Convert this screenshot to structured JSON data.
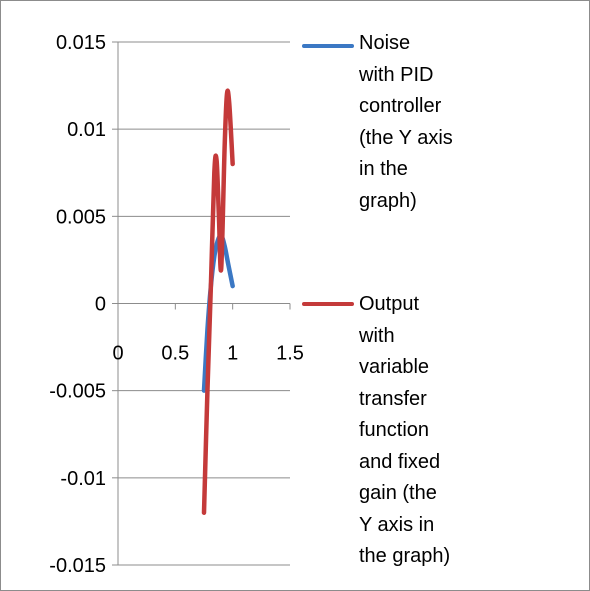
{
  "chart_data": {
    "type": "line",
    "xlim": [
      0,
      1.5
    ],
    "ylim": [
      -0.015,
      0.015
    ],
    "x_ticks": [
      "0",
      "0.5",
      "1",
      "1.5"
    ],
    "y_ticks": [
      "0.015",
      "0.01",
      "0.005",
      "0",
      "-0.005",
      "-0.01",
      "-0.015"
    ],
    "grid": true,
    "legend_position": "right",
    "series": [
      {
        "name_lines": [
          "Noise",
          "with PID",
          "controller",
          "(the Y axis",
          "in the",
          "graph)"
        ],
        "color": "#3b78c4",
        "x": [
          0.75,
          0.78,
          0.81,
          0.84,
          0.87,
          0.9,
          0.93,
          0.96,
          1.0
        ],
        "y": [
          -0.005,
          -0.0015,
          0.001,
          0.0027,
          0.0036,
          0.0039,
          0.0033,
          0.0023,
          0.001
        ]
      },
      {
        "name_lines": [
          "Output",
          "with",
          "variable",
          "transfer",
          "function",
          "and fixed",
          "gain (the",
          "Y axis in",
          "the graph)"
        ],
        "color": "#c43a3a",
        "x": [
          0.75,
          0.78,
          0.81,
          0.84,
          0.86,
          0.88,
          0.9,
          0.93,
          0.95,
          0.97,
          1.0
        ],
        "y": [
          -0.012,
          -0.005,
          0.001,
          0.0075,
          0.0082,
          0.005,
          0.002,
          0.009,
          0.012,
          0.0115,
          0.008
        ]
      }
    ]
  }
}
